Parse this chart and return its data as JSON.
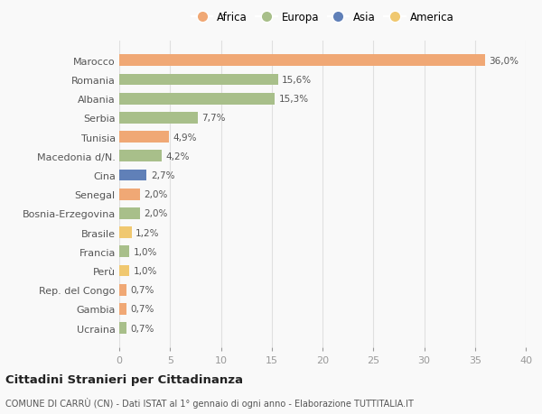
{
  "countries": [
    "Marocco",
    "Romania",
    "Albania",
    "Serbia",
    "Tunisia",
    "Macedonia d/N.",
    "Cina",
    "Senegal",
    "Bosnia-Erzegovina",
    "Brasile",
    "Francia",
    "Perù",
    "Rep. del Congo",
    "Gambia",
    "Ucraina"
  ],
  "values": [
    36.0,
    15.6,
    15.3,
    7.7,
    4.9,
    4.2,
    2.7,
    2.0,
    2.0,
    1.2,
    1.0,
    1.0,
    0.7,
    0.7,
    0.7
  ],
  "labels": [
    "36,0%",
    "15,6%",
    "15,3%",
    "7,7%",
    "4,9%",
    "4,2%",
    "2,7%",
    "2,0%",
    "2,0%",
    "1,2%",
    "1,0%",
    "1,0%",
    "0,7%",
    "0,7%",
    "0,7%"
  ],
  "continents": [
    "Africa",
    "Europa",
    "Europa",
    "Europa",
    "Africa",
    "Europa",
    "Asia",
    "Africa",
    "Europa",
    "America",
    "Europa",
    "America",
    "Africa",
    "Africa",
    "Europa"
  ],
  "colors": {
    "Africa": "#F0A875",
    "Europa": "#A8BF8A",
    "Asia": "#6080B8",
    "America": "#F0C870"
  },
  "legend_order": [
    "Africa",
    "Europa",
    "Asia",
    "America"
  ],
  "xlim": [
    0,
    40
  ],
  "xticks": [
    0,
    5,
    10,
    15,
    20,
    25,
    30,
    35,
    40
  ],
  "title_main": "Cittadini Stranieri per Cittadinanza",
  "title_sub": "COMUNE DI CARRÙ (CN) - Dati ISTAT al 1° gennaio di ogni anno - Elaborazione TUTTITALIA.IT",
  "background_color": "#f9f9f9",
  "bar_height": 0.6,
  "grid_color": "#e0e0e0"
}
